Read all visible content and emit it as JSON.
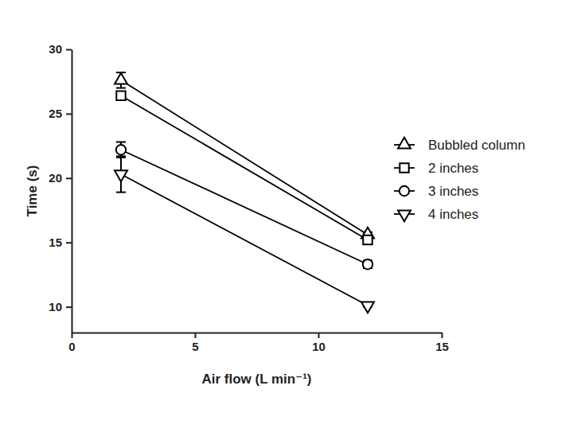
{
  "chart_data": {
    "type": "line",
    "x_label": "Air flow (L min⁻¹)",
    "y_label": "Time (s)",
    "x": [
      2,
      12
    ],
    "xlim": [
      0,
      15
    ],
    "xticks": [
      0,
      5,
      10,
      15
    ],
    "ylim": [
      8,
      30
    ],
    "yticks": [
      10,
      15,
      20,
      25,
      30
    ],
    "legend": "right",
    "series": [
      {
        "name": "Bubbled column",
        "color": "#000000",
        "marker": "triangle",
        "values": [
          27.6,
          15.6
        ],
        "errors": [
          0.6,
          0.2
        ]
      },
      {
        "name": "2 inches",
        "color": "#000000",
        "marker": "square",
        "values": [
          26.4,
          15.2
        ],
        "errors": [
          0.3,
          0.2
        ]
      },
      {
        "name": "3 inches",
        "color": "#000000",
        "marker": "circle",
        "values": [
          22.2,
          13.3
        ],
        "errors": [
          0.6,
          0.3
        ]
      },
      {
        "name": "4 inches",
        "color": "#000000",
        "marker": "triangle-down",
        "values": [
          20.3,
          10.1
        ],
        "errors": [
          1.4,
          0.1
        ]
      }
    ]
  }
}
